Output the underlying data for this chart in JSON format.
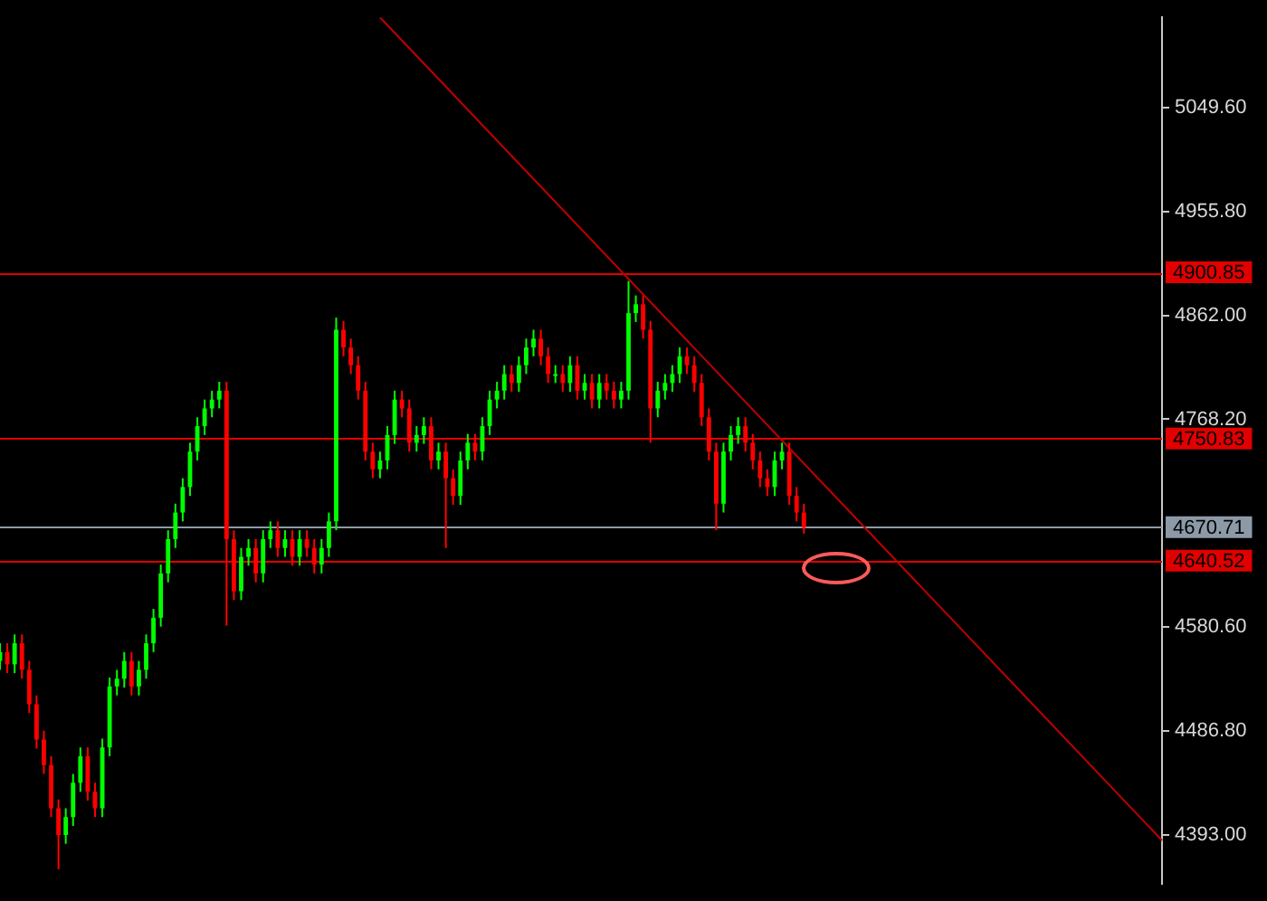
{
  "chart_data": {
    "type": "candlestick",
    "categories": [
      null,
      null,
      null,
      null,
      null,
      null,
      null,
      null,
      null,
      null,
      null,
      null,
      null,
      null,
      null,
      null,
      null,
      null,
      null,
      null,
      null,
      null,
      null,
      null,
      null,
      null,
      null,
      null,
      null,
      null,
      null,
      null,
      null,
      null,
      null,
      null,
      null,
      null,
      null,
      null,
      null,
      null,
      null,
      null,
      null,
      null,
      null,
      null,
      null,
      null,
      null,
      null,
      null,
      null,
      null,
      null,
      null,
      null,
      null,
      null,
      null,
      null,
      null,
      null,
      null,
      null,
      null,
      null,
      null,
      null,
      null,
      null,
      null,
      null,
      null,
      null,
      null,
      null,
      null,
      null,
      null,
      null,
      null,
      null,
      null,
      null,
      null,
      null,
      null,
      null,
      null,
      null,
      null,
      null,
      null,
      null,
      null,
      null,
      null,
      null,
      null,
      null,
      null,
      null,
      null,
      null,
      null,
      null,
      null,
      null,
      null,
      null,
      null,
      null,
      null,
      null,
      null,
      null,
      null,
      null,
      null,
      null,
      null,
      null,
      null,
      null,
      null,
      null,
      null,
      null,
      null,
      null,
      null,
      null,
      null,
      null,
      null,
      null,
      null,
      null,
      null,
      null,
      null,
      null,
      null,
      null,
      null,
      null,
      null,
      null,
      null,
      null,
      null,
      null,
      null,
      null,
      null,
      null,
      null,
      null
    ],
    "ohlc": [
      [
        4550,
        4566,
        4542,
        4558
      ],
      [
        4558,
        4566,
        4539,
        4547
      ],
      [
        4547,
        4574,
        4539,
        4566
      ],
      [
        4566,
        4574,
        4534,
        4542
      ],
      [
        4542,
        4550,
        4503,
        4511
      ],
      [
        4511,
        4519,
        4471,
        4479
      ],
      [
        4479,
        4487,
        4448,
        4456
      ],
      [
        4456,
        4464,
        4409,
        4417
      ],
      [
        4417,
        4425,
        4362,
        4393
      ],
      [
        4393,
        4417,
        4385,
        4409
      ],
      [
        4409,
        4448,
        4401,
        4440
      ],
      [
        4440,
        4472,
        4432,
        4464
      ],
      [
        4464,
        4472,
        4424,
        4432
      ],
      [
        4432,
        4440,
        4409,
        4417
      ],
      [
        4417,
        4480,
        4409,
        4472
      ],
      [
        4472,
        4535,
        4464,
        4527
      ],
      [
        4527,
        4542,
        4519,
        4534
      ],
      [
        4534,
        4558,
        4526,
        4550
      ],
      [
        4550,
        4558,
        4519,
        4527
      ],
      [
        4527,
        4550,
        4519,
        4542
      ],
      [
        4542,
        4574,
        4534,
        4566
      ],
      [
        4566,
        4597,
        4558,
        4589
      ],
      [
        4589,
        4637,
        4581,
        4629
      ],
      [
        4629,
        4668,
        4621,
        4660
      ],
      [
        4660,
        4692,
        4652,
        4684
      ],
      [
        4684,
        4715,
        4676,
        4707
      ],
      [
        4707,
        4747,
        4699,
        4739
      ],
      [
        4739,
        4770,
        4731,
        4762
      ],
      [
        4762,
        4786,
        4754,
        4778
      ],
      [
        4778,
        4794,
        4770,
        4786
      ],
      [
        4786,
        4802,
        4778,
        4794
      ],
      [
        4794,
        4802,
        4582,
        4660
      ],
      [
        4660,
        4668,
        4605,
        4613
      ],
      [
        4613,
        4652,
        4605,
        4644
      ],
      [
        4644,
        4660,
        4636,
        4652
      ],
      [
        4652,
        4660,
        4621,
        4629
      ],
      [
        4629,
        4668,
        4621,
        4660
      ],
      [
        4660,
        4676,
        4652,
        4668
      ],
      [
        4668,
        4676,
        4644,
        4652
      ],
      [
        4652,
        4668,
        4644,
        4660
      ],
      [
        4660,
        4668,
        4636,
        4644
      ],
      [
        4644,
        4668,
        4636,
        4660
      ],
      [
        4660,
        4668,
        4644,
        4652
      ],
      [
        4652,
        4660,
        4629,
        4637
      ],
      [
        4637,
        4660,
        4629,
        4652
      ],
      [
        4652,
        4684,
        4644,
        4676
      ],
      [
        4676,
        4860,
        4668,
        4849
      ],
      [
        4849,
        4857,
        4825,
        4833
      ],
      [
        4833,
        4841,
        4809,
        4817
      ],
      [
        4817,
        4825,
        4786,
        4794
      ],
      [
        4794,
        4802,
        4731,
        4739
      ],
      [
        4739,
        4747,
        4715,
        4723
      ],
      [
        4723,
        4739,
        4715,
        4731
      ],
      [
        4731,
        4762,
        4723,
        4754
      ],
      [
        4754,
        4794,
        4746,
        4786
      ],
      [
        4786,
        4794,
        4770,
        4778
      ],
      [
        4778,
        4786,
        4739,
        4747
      ],
      [
        4747,
        4762,
        4739,
        4754
      ],
      [
        4754,
        4770,
        4746,
        4762
      ],
      [
        4762,
        4770,
        4723,
        4731
      ],
      [
        4731,
        4747,
        4723,
        4739
      ],
      [
        4739,
        4747,
        4652,
        4715
      ],
      [
        4715,
        4723,
        4691,
        4699
      ],
      [
        4699,
        4739,
        4691,
        4731
      ],
      [
        4731,
        4755,
        4723,
        4747
      ],
      [
        4747,
        4755,
        4731,
        4739
      ],
      [
        4739,
        4770,
        4731,
        4762
      ],
      [
        4762,
        4794,
        4754,
        4786
      ],
      [
        4786,
        4802,
        4778,
        4794
      ],
      [
        4794,
        4817,
        4786,
        4809
      ],
      [
        4809,
        4817,
        4793,
        4801
      ],
      [
        4801,
        4825,
        4793,
        4817
      ],
      [
        4817,
        4841,
        4809,
        4833
      ],
      [
        4833,
        4849,
        4825,
        4841
      ],
      [
        4841,
        4849,
        4817,
        4825
      ],
      [
        4825,
        4833,
        4801,
        4809
      ],
      [
        4809,
        4817,
        4801,
        4809
      ],
      [
        4809,
        4817,
        4793,
        4801
      ],
      [
        4801,
        4825,
        4793,
        4817
      ],
      [
        4817,
        4825,
        4786,
        4794
      ],
      [
        4794,
        4809,
        4786,
        4801
      ],
      [
        4801,
        4809,
        4778,
        4786
      ],
      [
        4786,
        4809,
        4778,
        4801
      ],
      [
        4801,
        4809,
        4786,
        4794
      ],
      [
        4794,
        4802,
        4778,
        4786
      ],
      [
        4786,
        4802,
        4778,
        4794
      ],
      [
        4794,
        4893,
        4786,
        4864
      ],
      [
        4864,
        4880,
        4856,
        4872
      ],
      [
        4872,
        4880,
        4841,
        4849
      ],
      [
        4849,
        4857,
        4747,
        4778
      ],
      [
        4778,
        4802,
        4770,
        4794
      ],
      [
        4794,
        4809,
        4786,
        4801
      ],
      [
        4801,
        4817,
        4793,
        4809
      ],
      [
        4809,
        4833,
        4801,
        4825
      ],
      [
        4825,
        4833,
        4809,
        4817
      ],
      [
        4817,
        4825,
        4793,
        4801
      ],
      [
        4801,
        4809,
        4762,
        4770
      ],
      [
        4770,
        4778,
        4731,
        4739
      ],
      [
        4739,
        4747,
        4668,
        4692
      ],
      [
        4692,
        4747,
        4684,
        4739
      ],
      [
        4739,
        4762,
        4731,
        4754
      ],
      [
        4754,
        4770,
        4746,
        4762
      ],
      [
        4762,
        4770,
        4739,
        4747
      ],
      [
        4747,
        4755,
        4723,
        4731
      ],
      [
        4731,
        4739,
        4707,
        4715
      ],
      [
        4715,
        4723,
        4699,
        4707
      ],
      [
        4707,
        4739,
        4699,
        4731
      ],
      [
        4731,
        4747,
        4723,
        4739
      ],
      [
        4739,
        4747,
        4691,
        4699
      ],
      [
        4699,
        4707,
        4676,
        4684
      ],
      [
        4684,
        4692,
        4665,
        4670.71
      ],
      null,
      null,
      null,
      null,
      null,
      null,
      null,
      null,
      null,
      null,
      null,
      null,
      null,
      null,
      null,
      null,
      null,
      null,
      null,
      null,
      null,
      null,
      null,
      null,
      null,
      null,
      null,
      null,
      null,
      null,
      null,
      null,
      null,
      null,
      null,
      null,
      null,
      null,
      null,
      null,
      null,
      null,
      null,
      null,
      null,
      null,
      null,
      null,
      null
    ],
    "colors": [
      "#00ff00",
      "#ff0000",
      "#00ff00",
      "#ff0000",
      "#ff0000",
      "#ff0000",
      "#ff0000",
      "#ff0000",
      "#ff0000",
      "#00ff00",
      "#00ff00",
      "#00ff00",
      "#ff0000",
      "#ff0000",
      "#00ff00",
      "#00ff00",
      "#00ff00",
      "#00ff00",
      "#ff0000",
      "#00ff00",
      "#00ff00",
      "#00ff00",
      "#00ff00",
      "#00ff00",
      "#00ff00",
      "#00ff00",
      "#00ff00",
      "#00ff00",
      "#00ff00",
      "#00ff00",
      "#00ff00",
      "#ff0000",
      "#ff0000",
      "#00ff00",
      "#00ff00",
      "#ff0000",
      "#00ff00",
      "#00ff00",
      "#ff0000",
      "#00ff00",
      "#ff0000",
      "#00ff00",
      "#ff0000",
      "#ff0000",
      "#00ff00",
      "#00ff00",
      "#00ff00",
      "#ff0000",
      "#ff0000",
      "#ff0000",
      "#ff0000",
      "#ff0000",
      "#00ff00",
      "#00ff00",
      "#00ff00",
      "#ff0000",
      "#ff0000",
      "#00ff00",
      "#00ff00",
      "#ff0000",
      "#00ff00",
      "#ff0000",
      "#ff0000",
      "#00ff00",
      "#00ff00",
      "#ff0000",
      "#00ff00",
      "#00ff00",
      "#00ff00",
      "#00ff00",
      "#ff0000",
      "#00ff00",
      "#00ff00",
      "#00ff00",
      "#ff0000",
      "#ff0000",
      "#00ff00",
      "#ff0000",
      "#00ff00",
      "#ff0000",
      "#00ff00",
      "#ff0000",
      "#00ff00",
      "#ff0000",
      "#ff0000",
      "#00ff00",
      "#00ff00",
      "#00ff00",
      "#ff0000",
      "#ff0000",
      "#00ff00",
      "#00ff00",
      "#00ff00",
      "#00ff00",
      "#ff0000",
      "#ff0000",
      "#ff0000",
      "#ff0000",
      "#ff0000",
      "#00ff00",
      "#00ff00",
      "#00ff00",
      "#ff0000",
      "#ff0000",
      "#ff0000",
      "#ff0000",
      "#00ff00",
      "#00ff00",
      "#ff0000",
      "#ff0000",
      "#ff0000",
      null,
      null,
      null,
      null,
      null,
      null,
      null,
      null,
      null,
      null,
      null,
      null,
      null,
      null,
      null,
      null,
      null,
      null,
      null,
      null,
      null,
      null,
      null,
      null,
      null,
      null,
      null,
      null,
      null,
      null,
      null,
      null,
      null,
      null,
      null,
      null,
      null,
      null,
      null,
      null,
      null,
      null,
      null,
      null,
      null,
      null,
      null,
      null,
      null
    ],
    "series": [
      {
        "type": "line",
        "color": "#c00000",
        "values": [
          null,
          null,
          null,
          null,
          null,
          null,
          null,
          null,
          null,
          null,
          null,
          null,
          null,
          null,
          null,
          null,
          null,
          null,
          null,
          null,
          null,
          null,
          null,
          null,
          null,
          null,
          null,
          null,
          null,
          null,
          null,
          null,
          null,
          null,
          null,
          null,
          null,
          null,
          null,
          null,
          null,
          null,
          null,
          null,
          null,
          null,
          null,
          null,
          null,
          null,
          null,
          null,
          5131,
          null,
          null,
          null,
          null,
          null,
          null,
          null,
          null,
          null,
          null,
          null,
          null,
          null,
          null,
          null,
          null,
          null,
          null,
          null,
          null,
          null,
          null,
          null,
          null,
          null,
          null,
          null,
          null,
          null,
          null,
          null,
          null,
          null,
          null,
          null,
          null,
          null,
          null,
          null,
          null,
          null,
          null,
          null,
          null,
          null,
          null,
          null,
          null,
          null,
          null,
          null,
          null,
          null,
          null,
          null,
          null,
          null,
          null,
          null,
          null,
          null,
          null,
          null,
          null,
          null,
          null,
          null,
          null,
          null,
          null,
          null,
          null,
          null,
          null,
          null,
          null,
          null,
          null,
          null,
          null,
          null,
          null,
          null,
          null,
          null,
          null,
          null,
          null,
          null,
          null,
          null,
          null,
          null,
          null,
          null,
          null,
          null,
          null,
          null,
          null,
          null,
          null,
          null,
          null,
          null,
          null,
          4388
        ]
      }
    ],
    "ylim": [
      4349,
      5131
    ],
    "yticks": [
      {
        "value": 4393,
        "label": "4393.00"
      },
      {
        "value": 4486.8,
        "label": "4486.80"
      },
      {
        "value": 4580.6,
        "label": "4580.60"
      },
      {
        "value": 4768.2,
        "label": "4768.20"
      },
      {
        "value": 4862,
        "label": "4862.00"
      },
      {
        "value": 4955.8,
        "label": "4955.80"
      },
      {
        "value": 5049.6,
        "label": "5049.60"
      }
    ],
    "ref_lines": [
      {
        "axis": "y",
        "value": 4900.85,
        "label": "4900.85",
        "color": "#e00000"
      },
      {
        "axis": "y",
        "value": 4750.83,
        "label": "4750.83",
        "color": "#e00000"
      },
      {
        "axis": "y",
        "value": 4670.71,
        "label": "4670.71",
        "color": "#8c9aa8"
      },
      {
        "axis": "y",
        "value": 4640.52,
        "label": "4640.52",
        "color": "#e00000"
      }
    ],
    "tick_labels": "y"
  }
}
